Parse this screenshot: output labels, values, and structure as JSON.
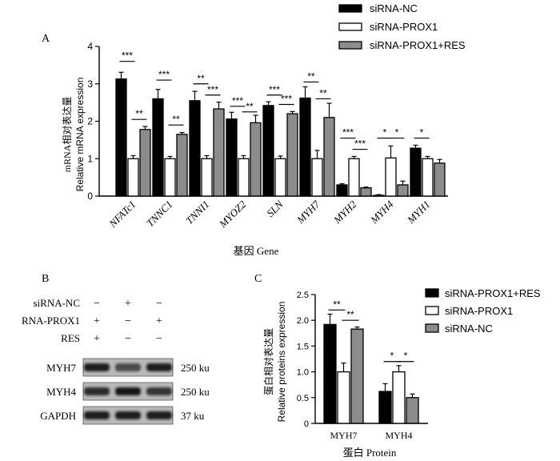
{
  "panels": {
    "a": "A",
    "b": "B",
    "c": "C"
  },
  "colors": {
    "black": "#000000",
    "white": "#ffffff",
    "gray": "#8c8c8c"
  },
  "chart_data": [
    {
      "type": "bar",
      "panel": "A",
      "title": "",
      "xlabel": "基因 Gene",
      "ylabel_cn": "mRNA相对表达量",
      "ylabel_en": "Relative mRNA expression",
      "ylim": [
        0,
        4
      ],
      "yticks": [
        "0",
        "1",
        "2",
        "3",
        "4"
      ],
      "grid": false,
      "legend_position": "top-right",
      "categories": [
        "NFATc1",
        "TNNC1",
        "TNNI1",
        "MYOZ2",
        "SLN",
        "MYH7",
        "MYH2",
        "MYH4",
        "MYH1"
      ],
      "series": [
        {
          "name": "siRNA-NC",
          "fill": "black",
          "values": [
            3.13,
            2.6,
            2.55,
            2.06,
            2.42,
            2.62,
            0.3,
            0.02,
            1.28
          ],
          "errors": [
            0.18,
            0.25,
            0.25,
            0.18,
            0.1,
            0.3,
            0.03,
            0.02,
            0.08
          ]
        },
        {
          "name": "siRNA-PROX1",
          "fill": "white",
          "values": [
            1.0,
            1.0,
            1.0,
            1.0,
            1.0,
            1.0,
            1.0,
            1.02,
            1.0
          ],
          "errors": [
            0.08,
            0.06,
            0.08,
            0.08,
            0.07,
            0.22,
            0.06,
            0.32,
            0.06
          ]
        },
        {
          "name": "siRNA-PROX1+RES",
          "fill": "gray",
          "values": [
            1.78,
            1.65,
            2.33,
            1.96,
            2.2,
            2.1,
            0.22,
            0.3,
            0.88
          ],
          "errors": [
            0.08,
            0.05,
            0.18,
            0.2,
            0.06,
            0.38,
            0.02,
            0.1,
            0.1
          ]
        }
      ],
      "significance": [
        {
          "category": 0,
          "pair": "left",
          "label": "***",
          "y": 3.6
        },
        {
          "category": 0,
          "pair": "right",
          "label": "**",
          "y": 2.05
        },
        {
          "category": 1,
          "pair": "left",
          "label": "***",
          "y": 3.1
        },
        {
          "category": 1,
          "pair": "right",
          "label": "**",
          "y": 1.9
        },
        {
          "category": 2,
          "pair": "left",
          "label": "**",
          "y": 3.0
        },
        {
          "category": 2,
          "pair": "right",
          "label": "***",
          "y": 2.7
        },
        {
          "category": 3,
          "pair": "left",
          "label": "***",
          "y": 2.4
        },
        {
          "category": 3,
          "pair": "right",
          "label": "**",
          "y": 2.25
        },
        {
          "category": 4,
          "pair": "left",
          "label": "***",
          "y": 2.7
        },
        {
          "category": 4,
          "pair": "right",
          "label": "***",
          "y": 2.45
        },
        {
          "category": 5,
          "pair": "left",
          "label": "**",
          "y": 3.05
        },
        {
          "category": 5,
          "pair": "right",
          "label": "**",
          "y": 2.6
        },
        {
          "category": 6,
          "pair": "left",
          "label": "***",
          "y": 1.55
        },
        {
          "category": 6,
          "pair": "right",
          "label": "***",
          "y": 1.25
        },
        {
          "category": 7,
          "pair": "left",
          "label": "*",
          "y": 1.55
        },
        {
          "category": 7,
          "pair": "right",
          "label": "*",
          "y": 1.55
        },
        {
          "category": 8,
          "pair": "left",
          "label": "*",
          "y": 1.55
        }
      ]
    },
    {
      "type": "bar",
      "panel": "C",
      "title": "",
      "xlabel": "蛋白 Protein",
      "ylabel_cn": "蛋白相对表达量",
      "ylabel_en": "Relative proteins expression",
      "ylim": [
        0,
        2.5
      ],
      "yticks": [
        "0",
        "0.5",
        "1.0",
        "1.5",
        "2.0",
        "2.5"
      ],
      "grid": false,
      "legend_position": "right",
      "categories": [
        "MYH7",
        "MYH4"
      ],
      "series": [
        {
          "name": "siRNA-PROX1+RES",
          "fill": "black",
          "values": [
            1.92,
            0.62
          ],
          "errors": [
            0.2,
            0.15
          ]
        },
        {
          "name": "siRNA-PROX1",
          "fill": "white",
          "values": [
            1.0,
            1.0
          ],
          "errors": [
            0.17,
            0.12
          ]
        },
        {
          "name": "siRNA-NC",
          "fill": "gray",
          "values": [
            1.83,
            0.5
          ],
          "errors": [
            0.04,
            0.07
          ]
        }
      ],
      "significance": [
        {
          "category": 0,
          "pair": "left",
          "label": "**",
          "y": 2.2
        },
        {
          "category": 0,
          "pair": "right",
          "label": "**",
          "y": 2.0
        },
        {
          "category": 1,
          "pair": "left",
          "label": "*",
          "y": 1.2
        },
        {
          "category": 1,
          "pair": "right",
          "label": "*",
          "y": 1.2
        }
      ]
    }
  ],
  "blot": {
    "conditions": [
      {
        "label": "siRNA-NC",
        "signs": [
          "−",
          "+",
          "−"
        ]
      },
      {
        "label": "RNA-PROX1",
        "signs": [
          "+",
          "−",
          "+"
        ]
      },
      {
        "label": "RES",
        "signs": [
          "+",
          "−",
          "−"
        ]
      }
    ],
    "bands": [
      {
        "protein": "MYH7",
        "size": "250 ku",
        "intensity": [
          0.85,
          0.4,
          0.85
        ]
      },
      {
        "protein": "MYH4",
        "size": "250 ku",
        "intensity": [
          0.7,
          0.95,
          0.6
        ]
      },
      {
        "protein": "GAPDH",
        "size": "37 ku",
        "intensity": [
          0.85,
          0.85,
          0.85
        ]
      }
    ]
  }
}
